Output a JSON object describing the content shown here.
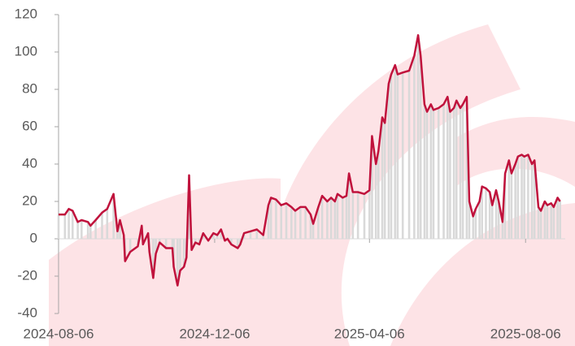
{
  "chart_data": {
    "type": "line",
    "x": [
      "2024-08-06",
      "2024-08-11",
      "2024-08-14",
      "2024-08-17",
      "2024-08-21",
      "2024-08-24",
      "2024-08-29",
      "2024-08-31",
      "2024-09-04",
      "2024-09-09",
      "2024-09-13",
      "2024-09-18",
      "2024-09-21",
      "2024-09-23",
      "2024-09-26",
      "2024-09-27",
      "2024-10-01",
      "2024-10-07",
      "2024-10-10",
      "2024-10-11",
      "2024-10-15",
      "2024-10-16",
      "2024-10-19",
      "2024-10-21",
      "2024-10-24",
      "2024-10-29",
      "2024-11-03",
      "2024-11-04",
      "2024-11-07",
      "2024-11-09",
      "2024-11-12",
      "2024-11-14",
      "2024-11-16",
      "2024-11-18",
      "2024-11-21",
      "2024-11-24",
      "2024-11-27",
      "2024-12-01",
      "2024-12-05",
      "2024-12-08",
      "2024-12-11",
      "2024-12-14",
      "2024-12-16",
      "2024-12-19",
      "2024-12-24",
      "2024-12-26",
      "2024-12-29",
      "2025-01-03",
      "2025-01-08",
      "2025-01-13",
      "2025-01-17",
      "2025-01-19",
      "2025-01-23",
      "2025-01-27",
      "2025-01-31",
      "2025-02-04",
      "2025-02-07",
      "2025-02-11",
      "2025-02-15",
      "2025-02-19",
      "2025-02-21",
      "2025-02-25",
      "2025-02-28",
      "2025-03-04",
      "2025-03-07",
      "2025-03-10",
      "2025-03-12",
      "2025-03-16",
      "2025-03-19",
      "2025-03-21",
      "2025-03-24",
      "2025-03-28",
      "2025-04-02",
      "2025-04-06",
      "2025-04-08",
      "2025-04-11",
      "2025-04-13",
      "2025-04-16",
      "2025-04-18",
      "2025-04-21",
      "2025-04-23",
      "2025-04-26",
      "2025-04-28",
      "2025-05-02",
      "2025-05-07",
      "2025-05-11",
      "2025-05-14",
      "2025-05-16",
      "2025-05-19",
      "2025-05-21",
      "2025-05-24",
      "2025-05-26",
      "2025-05-30",
      "2025-06-03",
      "2025-06-06",
      "2025-06-08",
      "2025-06-11",
      "2025-06-13",
      "2025-06-16",
      "2025-06-18",
      "2025-06-21",
      "2025-06-23",
      "2025-06-26",
      "2025-06-28",
      "2025-07-01",
      "2025-07-03",
      "2025-07-06",
      "2025-07-09",
      "2025-07-11",
      "2025-07-14",
      "2025-07-16",
      "2025-07-19",
      "2025-07-21",
      "2025-07-24",
      "2025-07-26",
      "2025-07-29",
      "2025-07-31",
      "2025-08-03",
      "2025-08-05",
      "2025-08-08",
      "2025-08-11",
      "2025-08-13",
      "2025-08-16",
      "2025-08-18",
      "2025-08-21",
      "2025-08-23",
      "2025-08-26",
      "2025-08-28",
      "2025-08-31",
      "2025-09-02"
    ],
    "series": [
      {
        "color": "#c0123c",
        "bar_color": "#d9d9d9",
        "values": [
          13,
          13,
          16,
          15,
          9,
          10,
          9,
          7,
          10,
          14,
          16,
          24,
          4,
          10,
          2,
          -12,
          -7,
          -4,
          7,
          -3,
          3,
          -7,
          -21,
          -8,
          -2,
          -5,
          -5,
          -15,
          -25,
          -17,
          -15,
          -10,
          34,
          -6,
          -2,
          -3,
          3,
          -1,
          3,
          2,
          5,
          -1,
          0,
          -3,
          -5,
          -3,
          3,
          4,
          5,
          2,
          18,
          22,
          21,
          18,
          19,
          17,
          15,
          17,
          17,
          13,
          8,
          17,
          23,
          20,
          22,
          20,
          24,
          22,
          23,
          35,
          25,
          25,
          24,
          26,
          55,
          40,
          47,
          65,
          62,
          83,
          88,
          93,
          88,
          89,
          90,
          98,
          109,
          98,
          72,
          68,
          72,
          69,
          70,
          72,
          76,
          68,
          70,
          74,
          70,
          72,
          76,
          20,
          12,
          16,
          20,
          28,
          27,
          25,
          18,
          26,
          20,
          9,
          35,
          42,
          35,
          40,
          44,
          45,
          44,
          45,
          40,
          42,
          17,
          15,
          20,
          18,
          19,
          17,
          22,
          20
        ]
      }
    ],
    "xlim": [
      "2024-08-06",
      "2025-09-06"
    ],
    "xticks": [
      "2024-08-06",
      "2024-12-06",
      "2025-04-06",
      "2025-08-06"
    ],
    "ylim": [
      -40,
      120
    ],
    "yticks": [
      -40,
      -20,
      0,
      20,
      40,
      60,
      80,
      100,
      120
    ]
  }
}
